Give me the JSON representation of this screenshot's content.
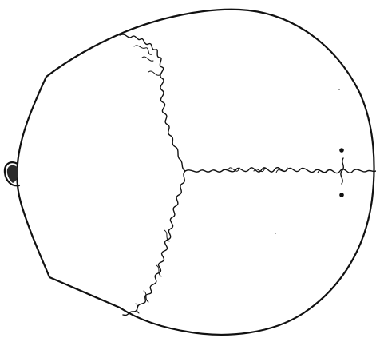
{
  "figure": {
    "ink_color": "#111111",
    "paper_color": "#ffffff",
    "labels": []
  }
}
